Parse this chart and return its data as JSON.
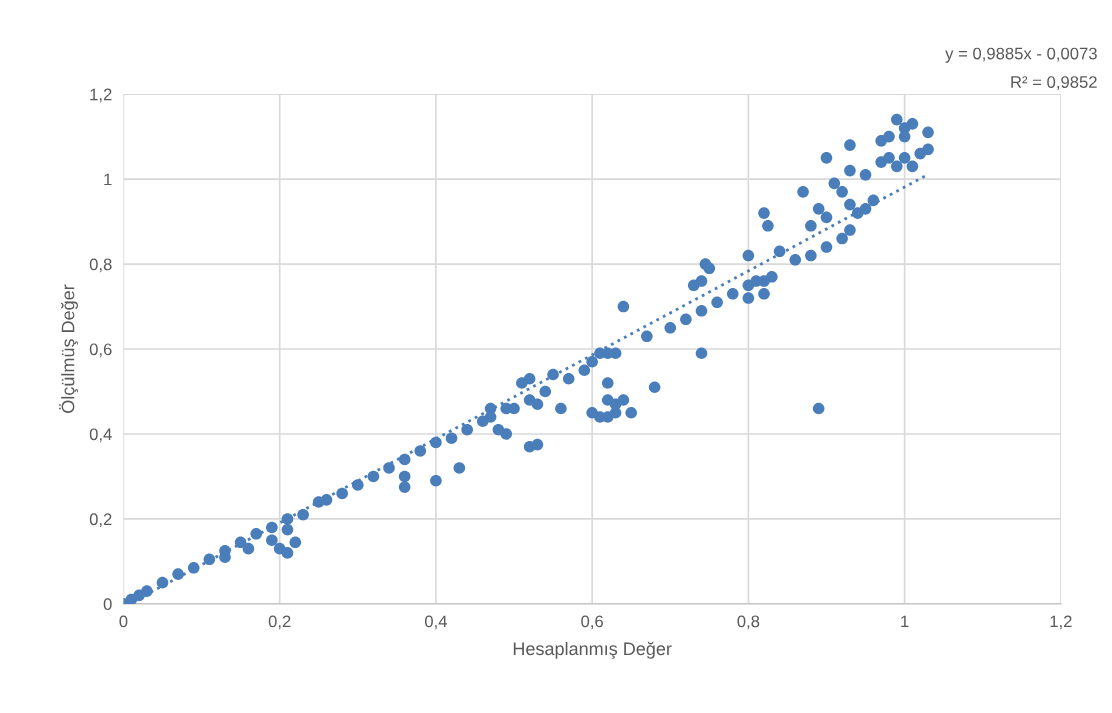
{
  "chart_data": {
    "type": "scatter",
    "xlabel": "Hesaplanmış Değer",
    "ylabel": "Ölçülmüş Değer",
    "xlim": [
      0,
      1.2
    ],
    "ylim": [
      0,
      1.2
    ],
    "xticks": [
      0,
      {
        "value": 0.2,
        "label": "0,2"
      },
      {
        "value": 0.4,
        "label": "0,4"
      },
      {
        "value": 0.6,
        "label": "0,6"
      },
      {
        "value": 0.8,
        "label": "0,8"
      },
      1,
      {
        "value": 1.2,
        "label": "1,2"
      }
    ],
    "yticks": [
      0,
      {
        "value": 0.2,
        "label": "0,2"
      },
      {
        "value": 0.4,
        "label": "0,4"
      },
      {
        "value": 0.6,
        "label": "0,6"
      },
      {
        "value": 0.8,
        "label": "0,8"
      },
      1,
      {
        "value": 1.2,
        "label": "1,2"
      }
    ],
    "grid": true,
    "legend": false,
    "annotations": [
      "y = 0,9885x - 0,0073",
      "R² = 0,9852"
    ],
    "series": [
      {
        "marker": "circle",
        "color": "#4a7ebb",
        "x": [
          0,
          0.01,
          0.02,
          0.03,
          0.05,
          0.07,
          0.09,
          0.11,
          0.13,
          0.15,
          0.17,
          0.19,
          0.21,
          0.23,
          0.13,
          0.16,
          0.19,
          0.2,
          0.21,
          0.22,
          0.21,
          0.25,
          0.26,
          0.28,
          0.3,
          0.32,
          0.34,
          0.36,
          0.38,
          0.36,
          0.36,
          0.4,
          0.43,
          0.4,
          0.42,
          0.44,
          0.46,
          0.47,
          0.47,
          0.48,
          0.49,
          0.49,
          0.5,
          0.51,
          0.52,
          0.52,
          0.53,
          0.54,
          0.55,
          0.56,
          0.57,
          0.59,
          0.6,
          0.61,
          0.62,
          0.63,
          0.52,
          0.53,
          0.6,
          0.61,
          0.62,
          0.63,
          0.62,
          0.63,
          0.65,
          0.64,
          0.62,
          0.64,
          0.67,
          0.68,
          0.7,
          0.72,
          0.74,
          0.76,
          0.78,
          0.8,
          0.81,
          0.82,
          0.8,
          0.82,
          0.83,
          0.74,
          0.73,
          0.74,
          0.745,
          0.75,
          0.8,
          0.82,
          0.825,
          0.84,
          0.86,
          0.88,
          0.9,
          0.92,
          0.93,
          0.87,
          0.89,
          0.9,
          0.88,
          0.89,
          0.9,
          0.91,
          0.92,
          0.93,
          0.93,
          0.95,
          0.94,
          0.96,
          0.95,
          0.93,
          0.97,
          0.97,
          0.98,
          0.99,
          1.0,
          1.01,
          1.0,
          0.99,
          1.01,
          1.02,
          1.03,
          1.03,
          0.98,
          1.0
        ],
        "values": [
          0,
          0.01,
          0.02,
          0.03,
          0.05,
          0.07,
          0.085,
          0.105,
          0.125,
          0.145,
          0.165,
          0.18,
          0.2,
          0.21,
          0.11,
          0.13,
          0.15,
          0.13,
          0.12,
          0.145,
          0.175,
          0.24,
          0.245,
          0.26,
          0.28,
          0.3,
          0.32,
          0.34,
          0.36,
          0.3,
          0.275,
          0.29,
          0.32,
          0.38,
          0.39,
          0.41,
          0.43,
          0.44,
          0.46,
          0.41,
          0.4,
          0.46,
          0.46,
          0.52,
          0.53,
          0.48,
          0.47,
          0.5,
          0.54,
          0.46,
          0.53,
          0.55,
          0.57,
          0.59,
          0.59,
          0.59,
          0.37,
          0.375,
          0.45,
          0.44,
          0.44,
          0.45,
          0.48,
          0.47,
          0.45,
          0.48,
          0.52,
          0.7,
          0.63,
          0.51,
          0.65,
          0.67,
          0.69,
          0.71,
          0.73,
          0.75,
          0.76,
          0.76,
          0.72,
          0.73,
          0.77,
          0.59,
          0.75,
          0.76,
          0.8,
          0.79,
          0.82,
          0.92,
          0.89,
          0.83,
          0.81,
          0.82,
          0.84,
          0.86,
          0.88,
          0.97,
          0.93,
          0.91,
          0.89,
          0.46,
          1.05,
          0.99,
          0.97,
          1.02,
          0.94,
          0.93,
          0.92,
          0.95,
          1.01,
          1.08,
          1.04,
          1.09,
          1.1,
          1.14,
          1.12,
          1.13,
          1.05,
          1.03,
          1.03,
          1.06,
          1.07,
          1.11,
          1.05,
          1.1
        ]
      },
      {
        "type": "line",
        "marker": "none",
        "color": "#4a7ebb",
        "line_style": "dotted",
        "x": [
          0.01,
          1.03
        ],
        "values": [
          0.003,
          1.011
        ]
      }
    ]
  }
}
